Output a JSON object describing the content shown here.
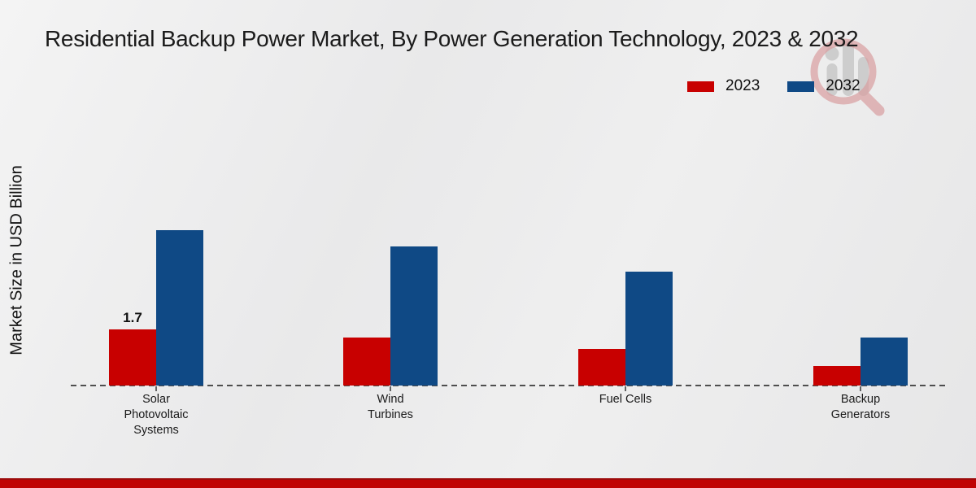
{
  "chart_data": {
    "type": "bar",
    "title": "Residential Backup Power Market, By Power Generation Technology, 2023 & 2032",
    "xlabel": "",
    "ylabel": "Market Size in USD Billion",
    "categories": [
      "Solar Photovoltaic Systems",
      "Wind Turbines",
      "Fuel Cells",
      "Backup Generators"
    ],
    "categories_wrapped": [
      "Solar\nPhotovoltaic\nSystems",
      "Wind\nTurbines",
      "Fuel Cells",
      "Backup\nGenerators"
    ],
    "series": [
      {
        "name": "2023",
        "color": "#c80000",
        "values": [
          1.7,
          1.45,
          1.1,
          0.6
        ],
        "value_labels": [
          "1.7",
          "",
          "",
          ""
        ]
      },
      {
        "name": "2032",
        "color": "#0f4985",
        "values": [
          4.7,
          4.2,
          3.45,
          1.45
        ],
        "value_labels": [
          "",
          "",
          "",
          ""
        ]
      }
    ],
    "ylim": [
      0,
      5
    ],
    "grid": false,
    "legend_position": "top-right",
    "baseline_style": "dashed"
  },
  "watermark": {
    "icon": "magnifier-bar-chart-watermark",
    "ring_color": "#d9a0a2",
    "bars_color": "#c6c6c6"
  },
  "footer": {
    "bar_color": "#c00404",
    "edge_color": "#9c0b0b"
  }
}
